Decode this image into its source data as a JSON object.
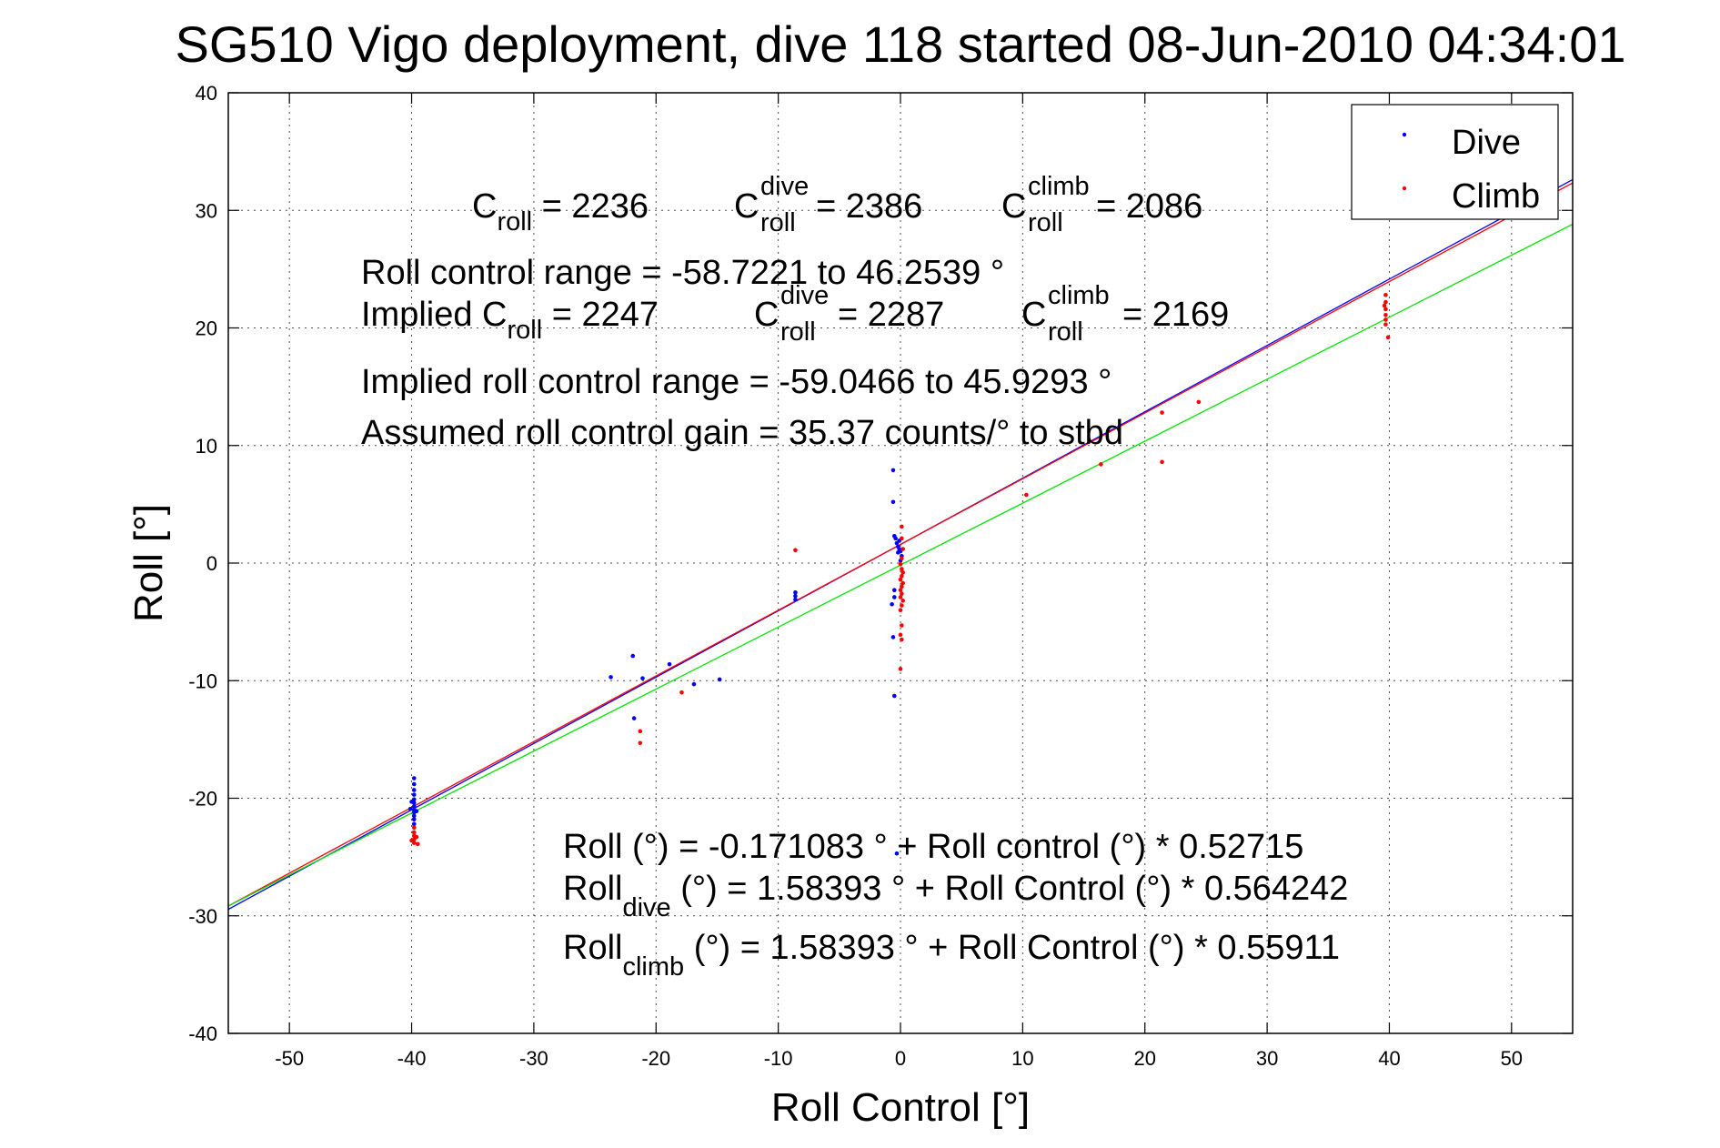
{
  "chart_data": {
    "type": "scatter",
    "title": "SG510 Vigo deployment, dive 118 started 08-Jun-2010 04:34:01",
    "xlabel": "Roll Control [°]",
    "ylabel": "Roll [°]",
    "xlim": [
      -55,
      55
    ],
    "ylim": [
      -40,
      40
    ],
    "xticks": [
      -50,
      -40,
      -30,
      -20,
      -10,
      0,
      10,
      20,
      30,
      40,
      50
    ],
    "yticks": [
      -40,
      -30,
      -20,
      -10,
      0,
      10,
      20,
      30,
      40
    ],
    "grid": true,
    "legend_position": "top-right",
    "colors": {
      "dive": "#0000ff",
      "climb": "#ff0000",
      "combined_fit": "#00e600"
    },
    "series": [
      {
        "name": "Dive",
        "color": "#0000ff",
        "points": [
          [
            -39.8,
            -18.3
          ],
          [
            -39.8,
            -18.8
          ],
          [
            -39.8,
            -19.3
          ],
          [
            -39.8,
            -19.7
          ],
          [
            -39.8,
            -20.1
          ],
          [
            -39.8,
            -20.4
          ],
          [
            -39.8,
            -20.7
          ],
          [
            -39.8,
            -21.0
          ],
          [
            -39.8,
            -21.2
          ],
          [
            -39.8,
            -21.5
          ],
          [
            -39.8,
            -21.8
          ],
          [
            -39.8,
            -22.2
          ],
          [
            -40.1,
            -20.9
          ],
          [
            -39.6,
            -21.1
          ],
          [
            -40.0,
            -20.3
          ],
          [
            -23.7,
            -9.7
          ],
          [
            -21.9,
            -7.9
          ],
          [
            -21.1,
            -9.8
          ],
          [
            -21.8,
            -13.2
          ],
          [
            -18.9,
            -8.6
          ],
          [
            -16.9,
            -10.3
          ],
          [
            -14.8,
            -9.9
          ],
          [
            -8.6,
            -2.5
          ],
          [
            -8.6,
            -2.8
          ],
          [
            -8.6,
            -3.1
          ],
          [
            -0.6,
            7.9
          ],
          [
            -0.6,
            5.2
          ],
          [
            -0.5,
            2.3
          ],
          [
            -0.3,
            1.7
          ],
          [
            -0.2,
            1.4
          ],
          [
            -0.1,
            1.2
          ],
          [
            0.0,
            1.0
          ],
          [
            0.1,
            0.6
          ],
          [
            0.0,
            0.2
          ],
          [
            -0.1,
            1.9
          ],
          [
            -0.4,
            2.1
          ],
          [
            -0.2,
            0.9
          ],
          [
            -0.5,
            -2.3
          ],
          [
            -0.5,
            -2.9
          ],
          [
            -0.7,
            -3.5
          ],
          [
            -0.6,
            -6.3
          ],
          [
            -0.5,
            -11.3
          ],
          [
            -0.3,
            -24.7
          ]
        ]
      },
      {
        "name": "Climb",
        "color": "#ff0000",
        "points": [
          [
            -39.8,
            -22.5
          ],
          [
            -39.8,
            -22.9
          ],
          [
            -39.8,
            -23.2
          ],
          [
            -39.8,
            -23.5
          ],
          [
            -39.8,
            -23.8
          ],
          [
            -39.6,
            -23.3
          ],
          [
            -40.0,
            -23.6
          ],
          [
            -39.5,
            -23.9
          ],
          [
            -21.3,
            -14.3
          ],
          [
            -21.3,
            -15.3
          ],
          [
            -17.9,
            -11.0
          ],
          [
            -8.6,
            1.1
          ],
          [
            0.1,
            3.1
          ],
          [
            0.1,
            2.1
          ],
          [
            0.2,
            1.2
          ],
          [
            0.1,
            0.4
          ],
          [
            0.0,
            -0.1
          ],
          [
            0.1,
            -0.5
          ],
          [
            0.2,
            -0.8
          ],
          [
            0.1,
            -1.1
          ],
          [
            0.0,
            -1.4
          ],
          [
            0.2,
            -1.7
          ],
          [
            0.1,
            -2.0
          ],
          [
            0.0,
            -2.3
          ],
          [
            0.1,
            -2.6
          ],
          [
            0.0,
            -2.9
          ],
          [
            0.2,
            -3.2
          ],
          [
            0.1,
            -3.6
          ],
          [
            0.0,
            -4.0
          ],
          [
            0.1,
            -5.3
          ],
          [
            0.0,
            -6.1
          ],
          [
            0.1,
            -6.5
          ],
          [
            0.0,
            -9.0
          ],
          [
            10.3,
            5.8
          ],
          [
            16.4,
            8.4
          ],
          [
            21.4,
            8.6
          ],
          [
            21.4,
            12.8
          ],
          [
            24.4,
            13.7
          ],
          [
            39.7,
            22.8
          ],
          [
            39.7,
            22.2
          ],
          [
            39.7,
            21.6
          ],
          [
            39.7,
            21.1
          ],
          [
            39.7,
            20.7
          ],
          [
            39.7,
            20.3
          ],
          [
            39.9,
            19.2
          ],
          [
            39.6,
            21.9
          ]
        ]
      }
    ],
    "fits": [
      {
        "series": "Dive",
        "color": "#0000ff",
        "intercept": 1.58393,
        "slope": 0.564242
      },
      {
        "series": "Climb",
        "color": "#ff0000",
        "intercept": 1.58393,
        "slope": 0.55911
      },
      {
        "series": "All",
        "color": "#00e600",
        "intercept": -0.171083,
        "slope": 0.52715
      }
    ],
    "legend": [
      {
        "label": "Dive",
        "color": "#0000ff"
      },
      {
        "label": "Climb",
        "color": "#ff0000"
      }
    ],
    "annotations": {
      "c_roll": {
        "base": "C",
        "sub": "roll",
        "value": " = 2236"
      },
      "c_roll_dive": {
        "base": "C",
        "sup": "dive",
        "sub": "roll",
        "value": " = 2386"
      },
      "c_roll_climb": {
        "base": "C",
        "sup": "climb",
        "sub": "roll",
        "value": " = 2086"
      },
      "range_line": "Roll control range = -58.7221 to 46.2539 °",
      "implied_prefix": "Implied C",
      "implied_sub": "roll",
      "implied_value": " = 2247",
      "implied_dive": {
        "base": "C",
        "sup": "dive",
        "sub": "roll",
        "value": " = 2287"
      },
      "implied_climb": {
        "base": "C",
        "sup": "climb",
        "sub": "roll",
        "value": " = 2169"
      },
      "implied_range_line": "Implied roll control range = -59.0466 to 45.9293 °",
      "gain_line": "Assumed roll control gain = 35.37 counts/° to stbd",
      "eq_all": "Roll (°) = -0.171083 ° + Roll control (°) * 0.52715",
      "eq_dive_prefix": "Roll",
      "eq_dive_sub": "dive",
      "eq_dive_rest": " (°) = 1.58393 ° + Roll Control (°) * 0.564242",
      "eq_climb_prefix": "Roll",
      "eq_climb_sub": "climb",
      "eq_climb_rest": " (°) = 1.58393 ° + Roll Control (°) * 0.55911"
    }
  }
}
